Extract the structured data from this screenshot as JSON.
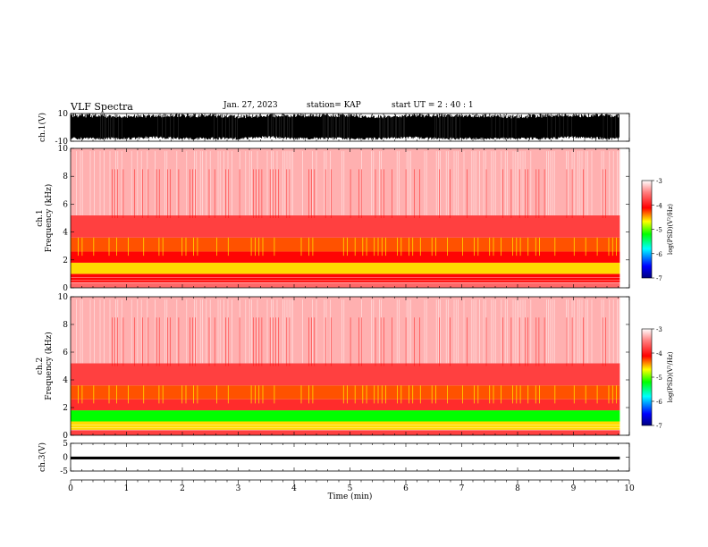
{
  "header": {
    "title": "VLF Spectra",
    "date": "Jan. 27, 2023",
    "station": "station= KAP",
    "start": "start  UT =   2 : 40 : 1"
  },
  "chart_data": [
    {
      "type": "line",
      "name": "ch1-waveform",
      "ylabel": "ch.1(V)",
      "ylim": [
        -10,
        10
      ],
      "yticks": [
        "10",
        "-10"
      ],
      "x": [
        0,
        0.5,
        1,
        1.5,
        2,
        2.5,
        3,
        3.5,
        4,
        4.5,
        5,
        5.5,
        6,
        6.5,
        7,
        7.5,
        8,
        8.5,
        9,
        9.5,
        9.83
      ],
      "y_min": [
        -9,
        -9,
        -9,
        -8,
        -9,
        -9,
        -9,
        -8,
        -9,
        -9,
        -9,
        -9,
        -8,
        -9,
        -9,
        -9,
        -9,
        -9,
        -8,
        -9,
        -9
      ],
      "y_max": [
        10,
        10,
        9,
        10,
        10,
        10,
        9,
        10,
        10,
        10,
        10,
        9,
        10,
        10,
        10,
        10,
        9,
        10,
        10,
        10,
        10
      ]
    },
    {
      "type": "heatmap",
      "name": "ch1-spectrogram",
      "ylabel": "ch.1 Frequency (kHz)",
      "ylim": [
        0,
        10
      ],
      "yticks": [
        "0",
        "2",
        "4",
        "6",
        "8",
        "10"
      ],
      "x_range": [
        0,
        9.83
      ],
      "freq_bands": [
        {
          "from": 0,
          "to": 0.4,
          "log_psd": -3.6
        },
        {
          "from": 0.4,
          "to": 1,
          "log_psd": -4.1
        },
        {
          "from": 1,
          "to": 1.8,
          "log_psd": -4.6
        },
        {
          "from": 1.8,
          "to": 2.6,
          "log_psd": -4.1
        },
        {
          "from": 2.6,
          "to": 3.6,
          "log_psd": -4.3
        },
        {
          "from": 3.6,
          "to": 5.2,
          "log_psd": -3.8
        },
        {
          "from": 5.2,
          "to": 10,
          "log_psd": -3.3
        }
      ],
      "colorbar": {
        "label": "log(PSD)(V²/Hz)",
        "range": [
          -7,
          -3
        ],
        "ticks": [
          "-3",
          "-4",
          "-5",
          "-6",
          "-7"
        ]
      }
    },
    {
      "type": "heatmap",
      "name": "ch2-spectrogram",
      "ylabel": "ch.2 Frequency (kHz)",
      "ylim": [
        0,
        10
      ],
      "yticks": [
        "0",
        "2",
        "4",
        "6",
        "8",
        "10"
      ],
      "x_range": [
        0,
        9.83
      ],
      "freq_bands": [
        {
          "from": 0,
          "to": 0.4,
          "log_psd": -3.8
        },
        {
          "from": 0.4,
          "to": 1,
          "log_psd": -4.6
        },
        {
          "from": 1,
          "to": 1.8,
          "log_psd": -5.2
        },
        {
          "from": 1.8,
          "to": 2.6,
          "log_psd": -3.9
        },
        {
          "from": 2.6,
          "to": 3.6,
          "log_psd": -4.3
        },
        {
          "from": 3.6,
          "to": 5.2,
          "log_psd": -3.8
        },
        {
          "from": 5.2,
          "to": 10,
          "log_psd": -3.3
        }
      ],
      "colorbar": {
        "label": "log(PSD)(V²/Hz)",
        "range": [
          -7,
          -3
        ],
        "ticks": [
          "-3",
          "-4",
          "-5",
          "-6",
          "-7"
        ]
      }
    },
    {
      "type": "line",
      "name": "ch3-waveform",
      "ylabel": "ch.3(V)",
      "ylim": [
        -5,
        5
      ],
      "yticks": [
        "5",
        "0",
        "-5"
      ],
      "x": [
        0,
        9.83
      ],
      "y_min": [
        -0.8,
        -0.8
      ],
      "y_max": [
        0.2,
        0.2
      ],
      "xlabel": "Time  (min)",
      "xlim": [
        0,
        10
      ],
      "xticks": [
        "0",
        "1",
        "2",
        "3",
        "4",
        "5",
        "6",
        "7",
        "8",
        "9",
        "10"
      ]
    }
  ],
  "colors": {
    "wave": "#000000",
    "psd_scale": [
      "#00007f",
      "#0000ff",
      "#00ffff",
      "#00ff00",
      "#ffff00",
      "#ff0000",
      "#ff8080",
      "#ffffff"
    ]
  }
}
